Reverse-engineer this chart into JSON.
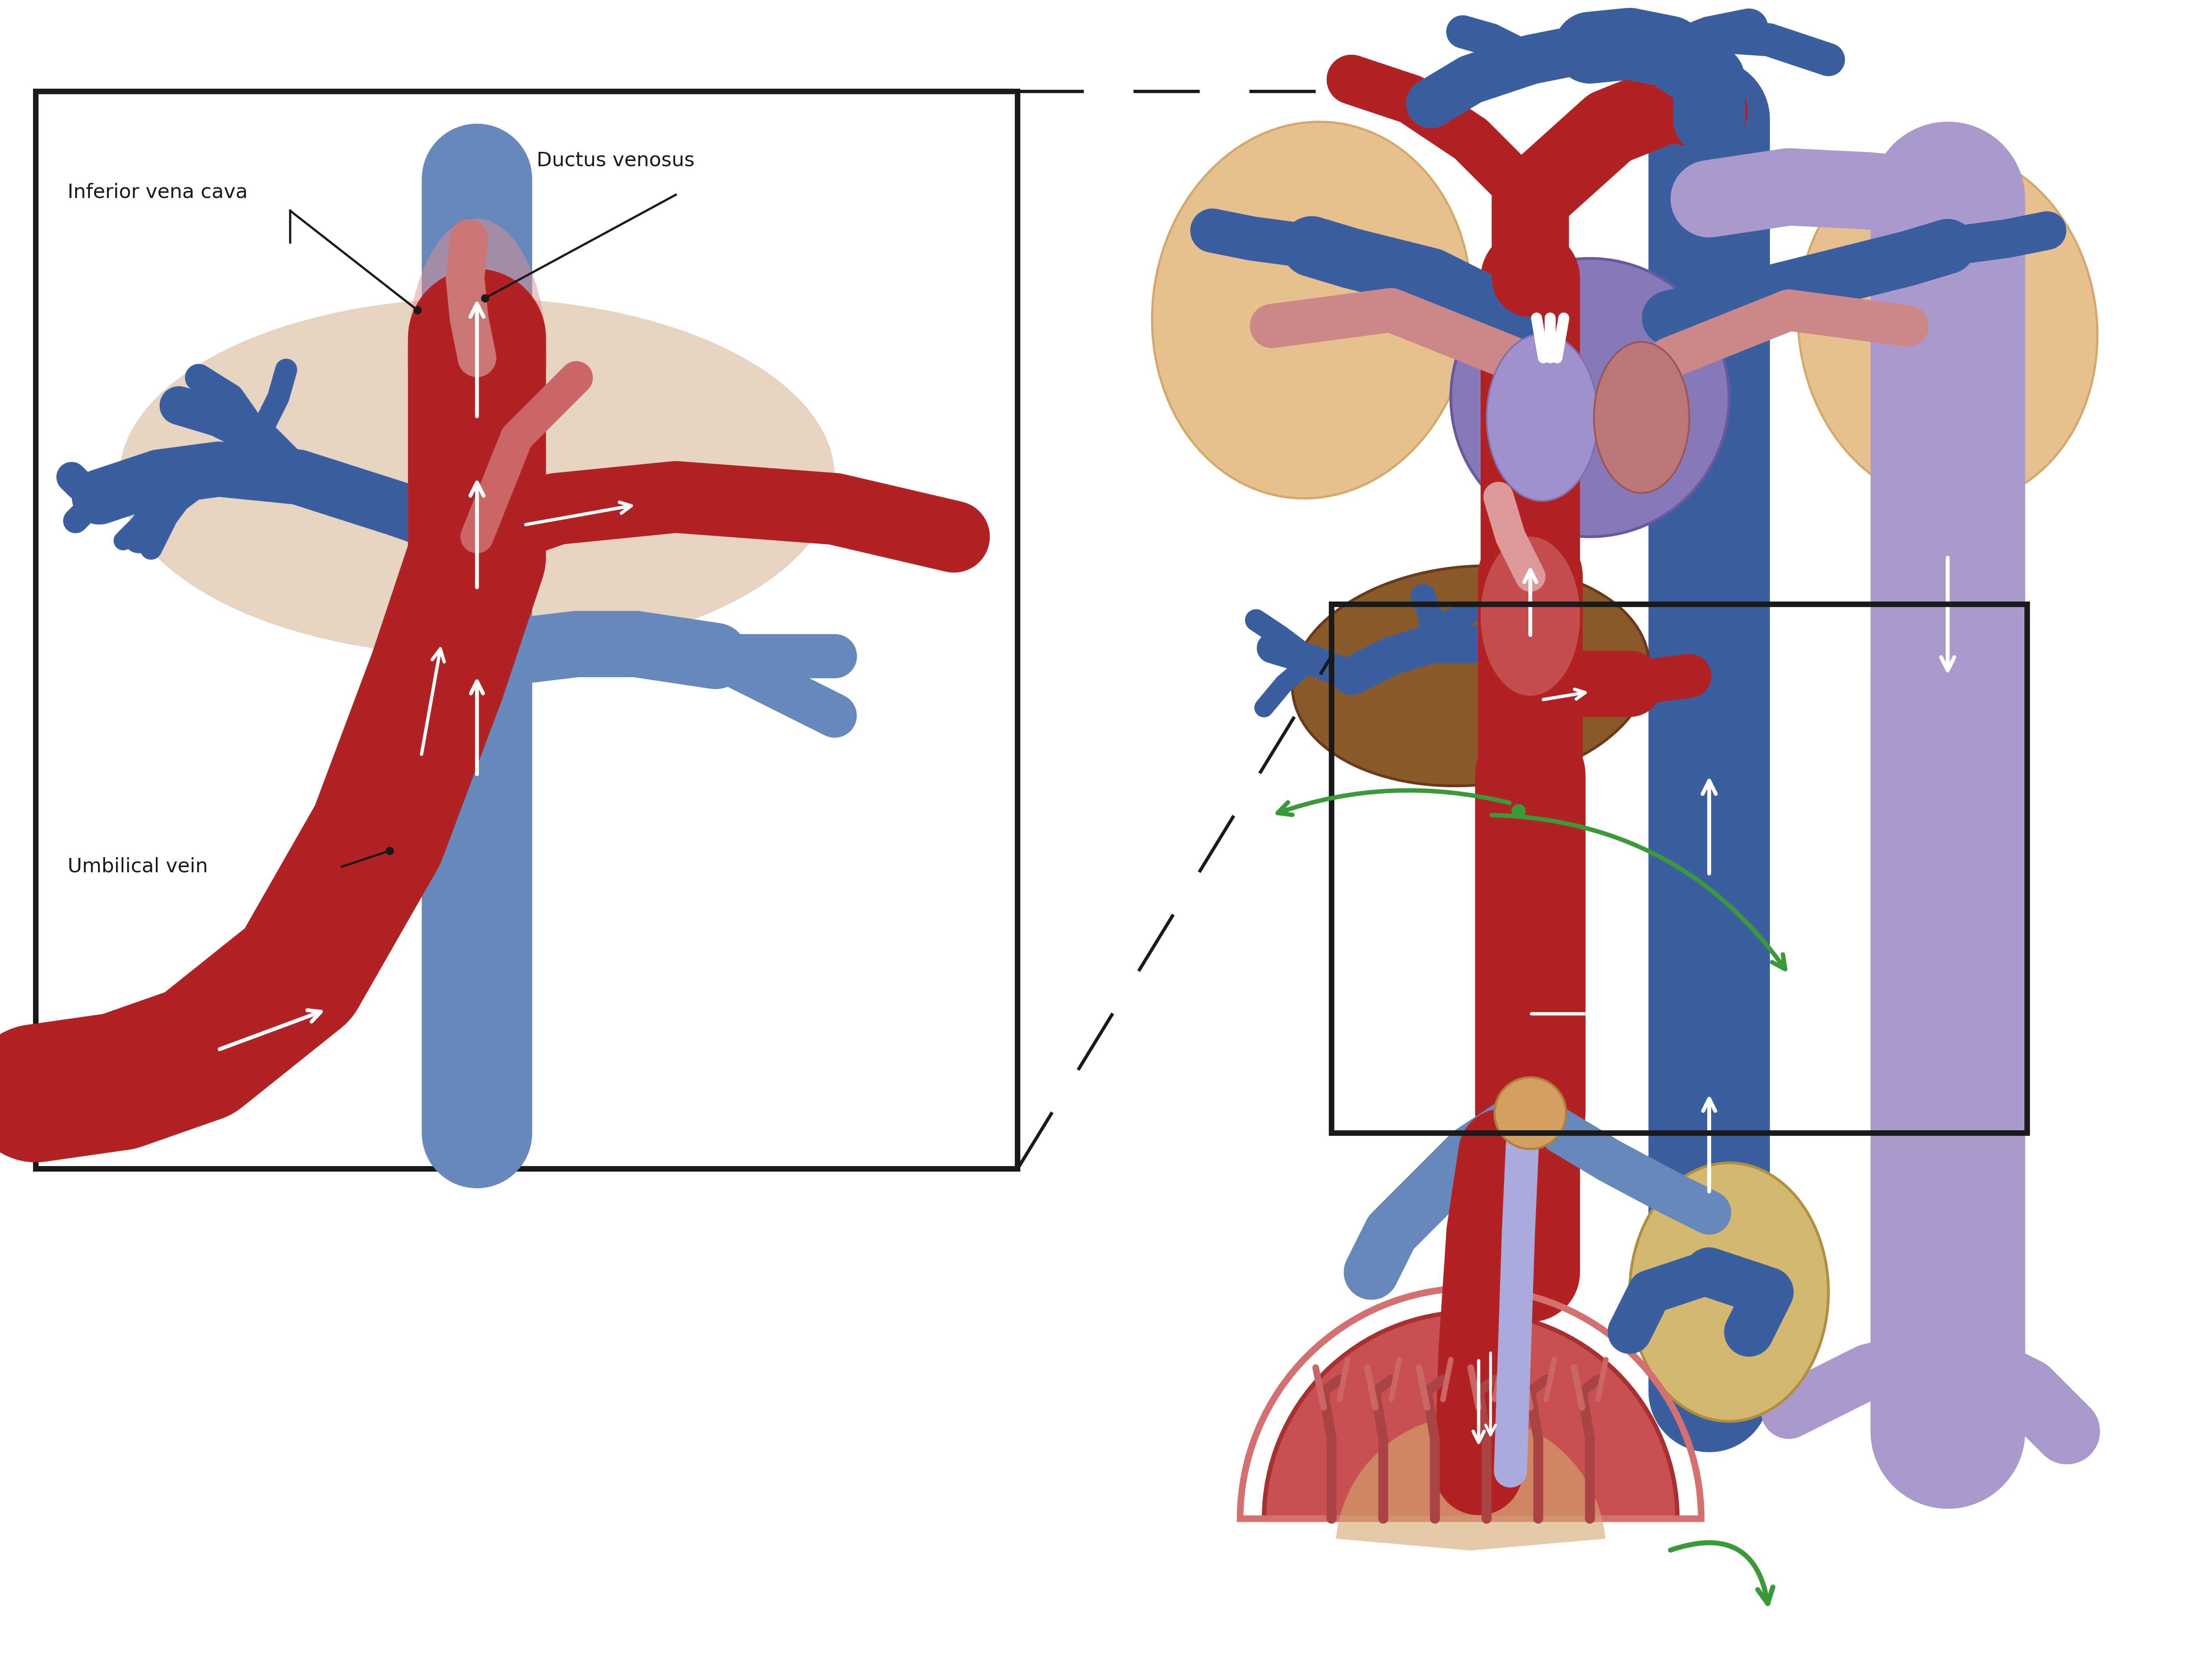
{
  "colors": {
    "arterial_red": "#B22222",
    "arterial_red_dark": "#8B1515",
    "venous_blue": "#3A5FA0",
    "venous_blue_light": "#6688BB",
    "venous_purple": "#8878C0",
    "venous_purple_light": "#AA99CC",
    "liver_brown": "#8B5A2B",
    "liver_brown_dark": "#6B3A1B",
    "lung_peach": "#E8C090",
    "lung_peach_edge": "#D4A868",
    "heart_purple": "#8878B8",
    "heart_purple_dark": "#6858A0",
    "heart_red": "#CC5555",
    "placenta_red": "#C85050",
    "placenta_edge": "#A83030",
    "placenta_inner": "#D4784A",
    "bladder_tan": "#D4B870",
    "navel_tan": "#D4A060",
    "green_arrow": "#3A9A3A",
    "white": "#FFFFFF",
    "black": "#1A1A1A",
    "liver_inset": "#D4B090",
    "gradient_pink": "#E09090",
    "blue_branch": "#4A70B0"
  },
  "labels": {
    "inferior_vena_cava": "Inferior vena cava",
    "ductus_venosus": "Ductus venosus",
    "umbilical_vein": "Umbilical vein"
  },
  "font_size": 36
}
